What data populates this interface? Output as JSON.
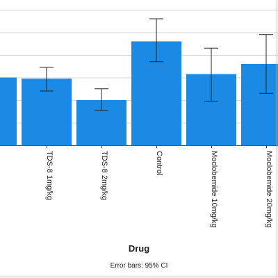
{
  "chart_data": {
    "type": "bar",
    "categories": [
      "",
      "TDS-8 1mg/kg",
      "TDS-8 2mg/kg",
      "Control",
      "Moclobemide 10mg/kg",
      "Moclobemide 20mg/kg"
    ],
    "values": [
      30,
      29.5,
      20,
      46,
      31.5,
      36
    ],
    "error_low": [
      null,
      24,
      15.5,
      37,
      19.5,
      23
    ],
    "error_high": [
      null,
      34.5,
      25,
      56,
      43,
      49
    ],
    "xlabel": "Drug",
    "ylabel": "",
    "ylim": [
      0,
      60
    ],
    "grid": true,
    "bar_color": "#1a8ae5",
    "footnote": "Error bars: 95% CI"
  }
}
